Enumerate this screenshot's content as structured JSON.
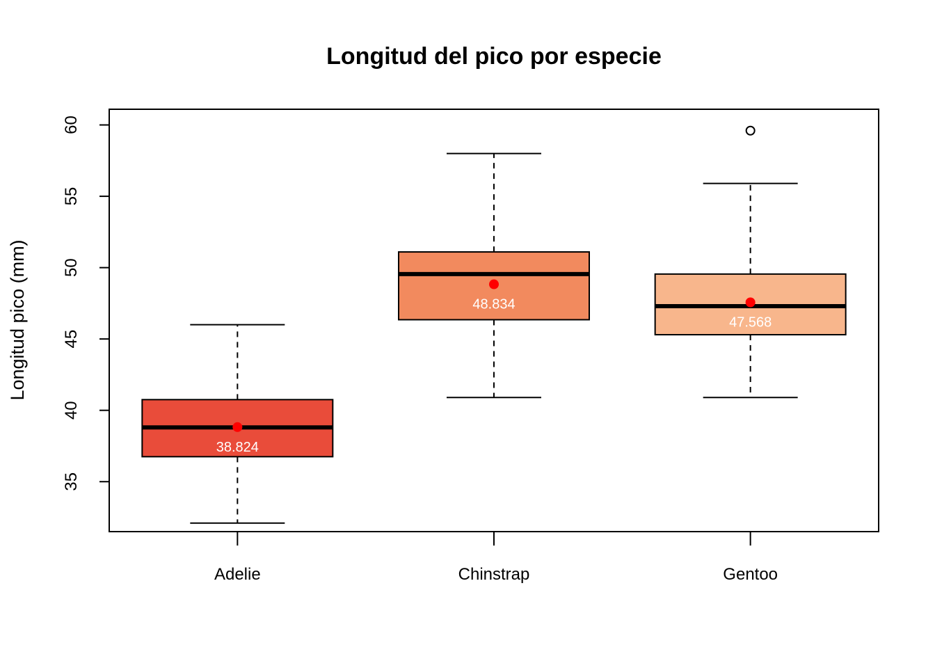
{
  "chart_data": {
    "type": "boxplot",
    "title": "Longitud del pico por especie",
    "xlabel": "",
    "ylabel": "Longitud pico (mm)",
    "ylim": [
      31.5,
      61.1
    ],
    "y_ticks": [
      35,
      40,
      45,
      50,
      55,
      60
    ],
    "grid": false,
    "categories": [
      "Adelie",
      "Chinstrap",
      "Gentoo"
    ],
    "boxes": [
      {
        "category": "Adelie",
        "whisker_low": 32.1,
        "q1": 36.75,
        "median": 38.8,
        "q3": 40.75,
        "whisker_high": 46.0,
        "mean": 38.824,
        "mean_label": "38.824",
        "outliers": [],
        "color": "#E94C3A"
      },
      {
        "category": "Chinstrap",
        "whisker_low": 40.9,
        "q1": 46.35,
        "median": 49.55,
        "q3": 51.1,
        "whisker_high": 58.0,
        "mean": 48.834,
        "mean_label": "48.834",
        "outliers": [],
        "color": "#F28A5E"
      },
      {
        "category": "Gentoo",
        "whisker_low": 40.9,
        "q1": 45.3,
        "median": 47.3,
        "q3": 49.55,
        "whisker_high": 55.9,
        "mean": 47.568,
        "mean_label": "47.568",
        "outliers": [
          59.6
        ],
        "color": "#F8B68C"
      }
    ],
    "mean_marker_color": "#FF0000"
  }
}
